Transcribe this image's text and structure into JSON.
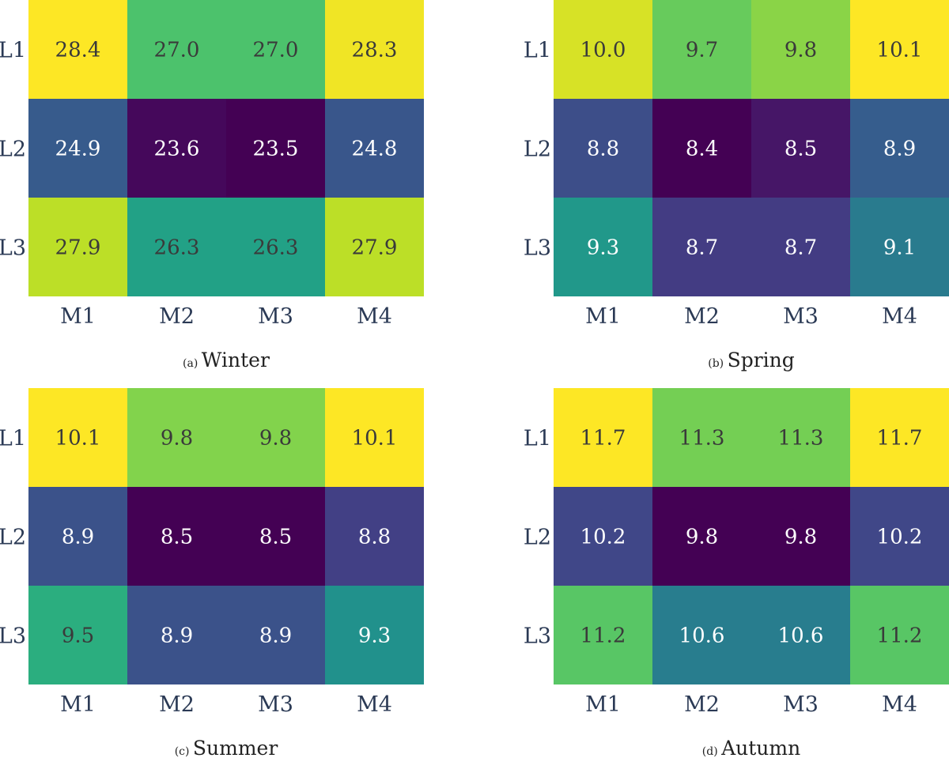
{
  "chart_data": [
    {
      "type": "heatmap",
      "subfigure": "(a)",
      "caption": "Winter",
      "x_categories": [
        "M1",
        "M2",
        "M3",
        "M4"
      ],
      "y_categories": [
        "L1",
        "L2",
        "L3"
      ],
      "values": [
        [
          28.4,
          27.0,
          27.0,
          28.3
        ],
        [
          24.9,
          23.6,
          23.5,
          24.8
        ],
        [
          27.9,
          26.3,
          26.3,
          27.9
        ]
      ],
      "colormap": "viridis",
      "colorbar": false,
      "value_labels": true
    },
    {
      "type": "heatmap",
      "subfigure": "(b)",
      "caption": "Spring",
      "x_categories": [
        "M1",
        "M2",
        "M3",
        "M4"
      ],
      "y_categories": [
        "L1",
        "L2",
        "L3"
      ],
      "values": [
        [
          10.0,
          9.7,
          9.8,
          10.1
        ],
        [
          8.8,
          8.4,
          8.5,
          8.9
        ],
        [
          9.3,
          8.7,
          8.7,
          9.1
        ]
      ],
      "colormap": "viridis",
      "colorbar": false,
      "value_labels": true
    },
    {
      "type": "heatmap",
      "subfigure": "(c)",
      "caption": "Summer",
      "x_categories": [
        "M1",
        "M2",
        "M3",
        "M4"
      ],
      "y_categories": [
        "L1",
        "L2",
        "L3"
      ],
      "values": [
        [
          10.1,
          9.8,
          9.8,
          10.1
        ],
        [
          8.9,
          8.5,
          8.5,
          8.8
        ],
        [
          9.5,
          8.9,
          8.9,
          9.3
        ]
      ],
      "colormap": "viridis",
      "colorbar": false,
      "value_labels": true
    },
    {
      "type": "heatmap",
      "subfigure": "(d)",
      "caption": "Autumn",
      "x_categories": [
        "M1",
        "M2",
        "M3",
        "M4"
      ],
      "y_categories": [
        "L1",
        "L2",
        "L3"
      ],
      "values": [
        [
          11.7,
          11.3,
          11.3,
          11.7
        ],
        [
          10.2,
          9.8,
          9.8,
          10.2
        ],
        [
          11.2,
          10.6,
          10.6,
          11.2
        ]
      ],
      "colormap": "viridis",
      "colorbar": false,
      "value_labels": true
    }
  ]
}
